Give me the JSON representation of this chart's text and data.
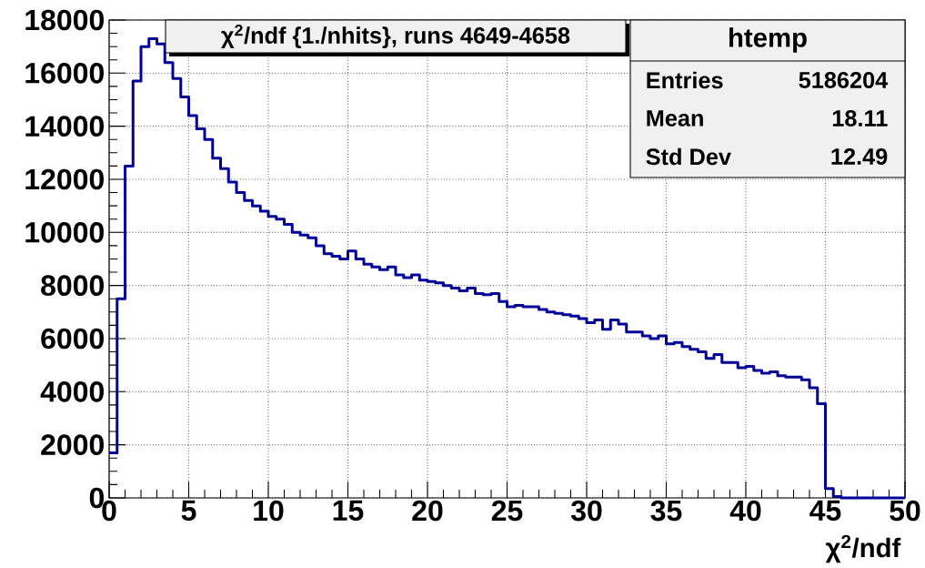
{
  "chart_data": {
    "type": "histogram",
    "title": "χ$^{2}$/ndf {1./nhits}, runs 4649-4658",
    "xlabel": "χ$^{2}$/ndf",
    "bins": [
      0,
      0.5,
      1,
      1.5,
      2,
      2.5,
      3,
      3.5,
      4,
      4.5,
      5,
      5.5,
      6,
      6.5,
      7,
      7.5,
      8,
      8.5,
      9,
      9.5,
      10,
      10.5,
      11,
      11.5,
      12,
      12.5,
      13,
      13.5,
      14,
      14.5,
      15,
      15.5,
      16,
      16.5,
      17,
      17.5,
      18,
      18.5,
      19,
      19.5,
      20,
      20.5,
      21,
      21.5,
      22,
      22.5,
      23,
      23.5,
      24,
      24.5,
      25,
      25.5,
      26,
      26.5,
      27,
      27.5,
      28,
      28.5,
      29,
      29.5,
      30,
      30.5,
      31,
      31.5,
      32,
      32.5,
      33,
      33.5,
      34,
      34.5,
      35,
      35.5,
      36,
      36.5,
      37,
      37.5,
      38,
      38.5,
      39,
      39.5,
      40,
      40.5,
      41,
      41.5,
      42,
      42.5,
      43,
      43.5,
      44,
      44.5,
      45,
      45.5,
      46,
      46.5,
      47,
      47.5,
      48,
      48.5,
      49,
      49.5,
      50
    ],
    "values": [
      1700,
      7500,
      12500,
      15700,
      17000,
      17300,
      17100,
      16400,
      15800,
      15100,
      14400,
      13900,
      13500,
      12800,
      12400,
      11900,
      11500,
      11200,
      11000,
      10800,
      10600,
      10500,
      10300,
      10000,
      9900,
      9800,
      9500,
      9200,
      9100,
      9000,
      9300,
      9000,
      8800,
      8700,
      8600,
      8700,
      8400,
      8300,
      8400,
      8200,
      8150,
      8100,
      8000,
      7900,
      7800,
      7900,
      7700,
      7650,
      7700,
      7400,
      7200,
      7250,
      7200,
      7200,
      7100,
      7000,
      6950,
      6900,
      6850,
      6750,
      6600,
      6700,
      6350,
      6700,
      6550,
      6250,
      6250,
      6100,
      6000,
      6100,
      5800,
      5850,
      5700,
      5600,
      5500,
      5250,
      5400,
      5100,
      5100,
      4900,
      4950,
      4800,
      4700,
      4750,
      4600,
      4550,
      4550,
      4450,
      4150,
      3550,
      350,
      50,
      0,
      0,
      0,
      0,
      0,
      0,
      0,
      0
    ],
    "color": "#000099",
    "xlim": [
      0,
      50
    ],
    "ylim": [
      0,
      18000
    ],
    "xticks": [
      0,
      5,
      10,
      15,
      20,
      25,
      30,
      35,
      40,
      45,
      50
    ],
    "yticks": [
      0,
      2000,
      4000,
      6000,
      8000,
      10000,
      12000,
      14000,
      16000,
      18000
    ],
    "grid": true,
    "annotations": [
      "htemp",
      "Entries",
      "5186204",
      "Mean",
      "18.11",
      "Std Dev",
      "12.49"
    ]
  }
}
